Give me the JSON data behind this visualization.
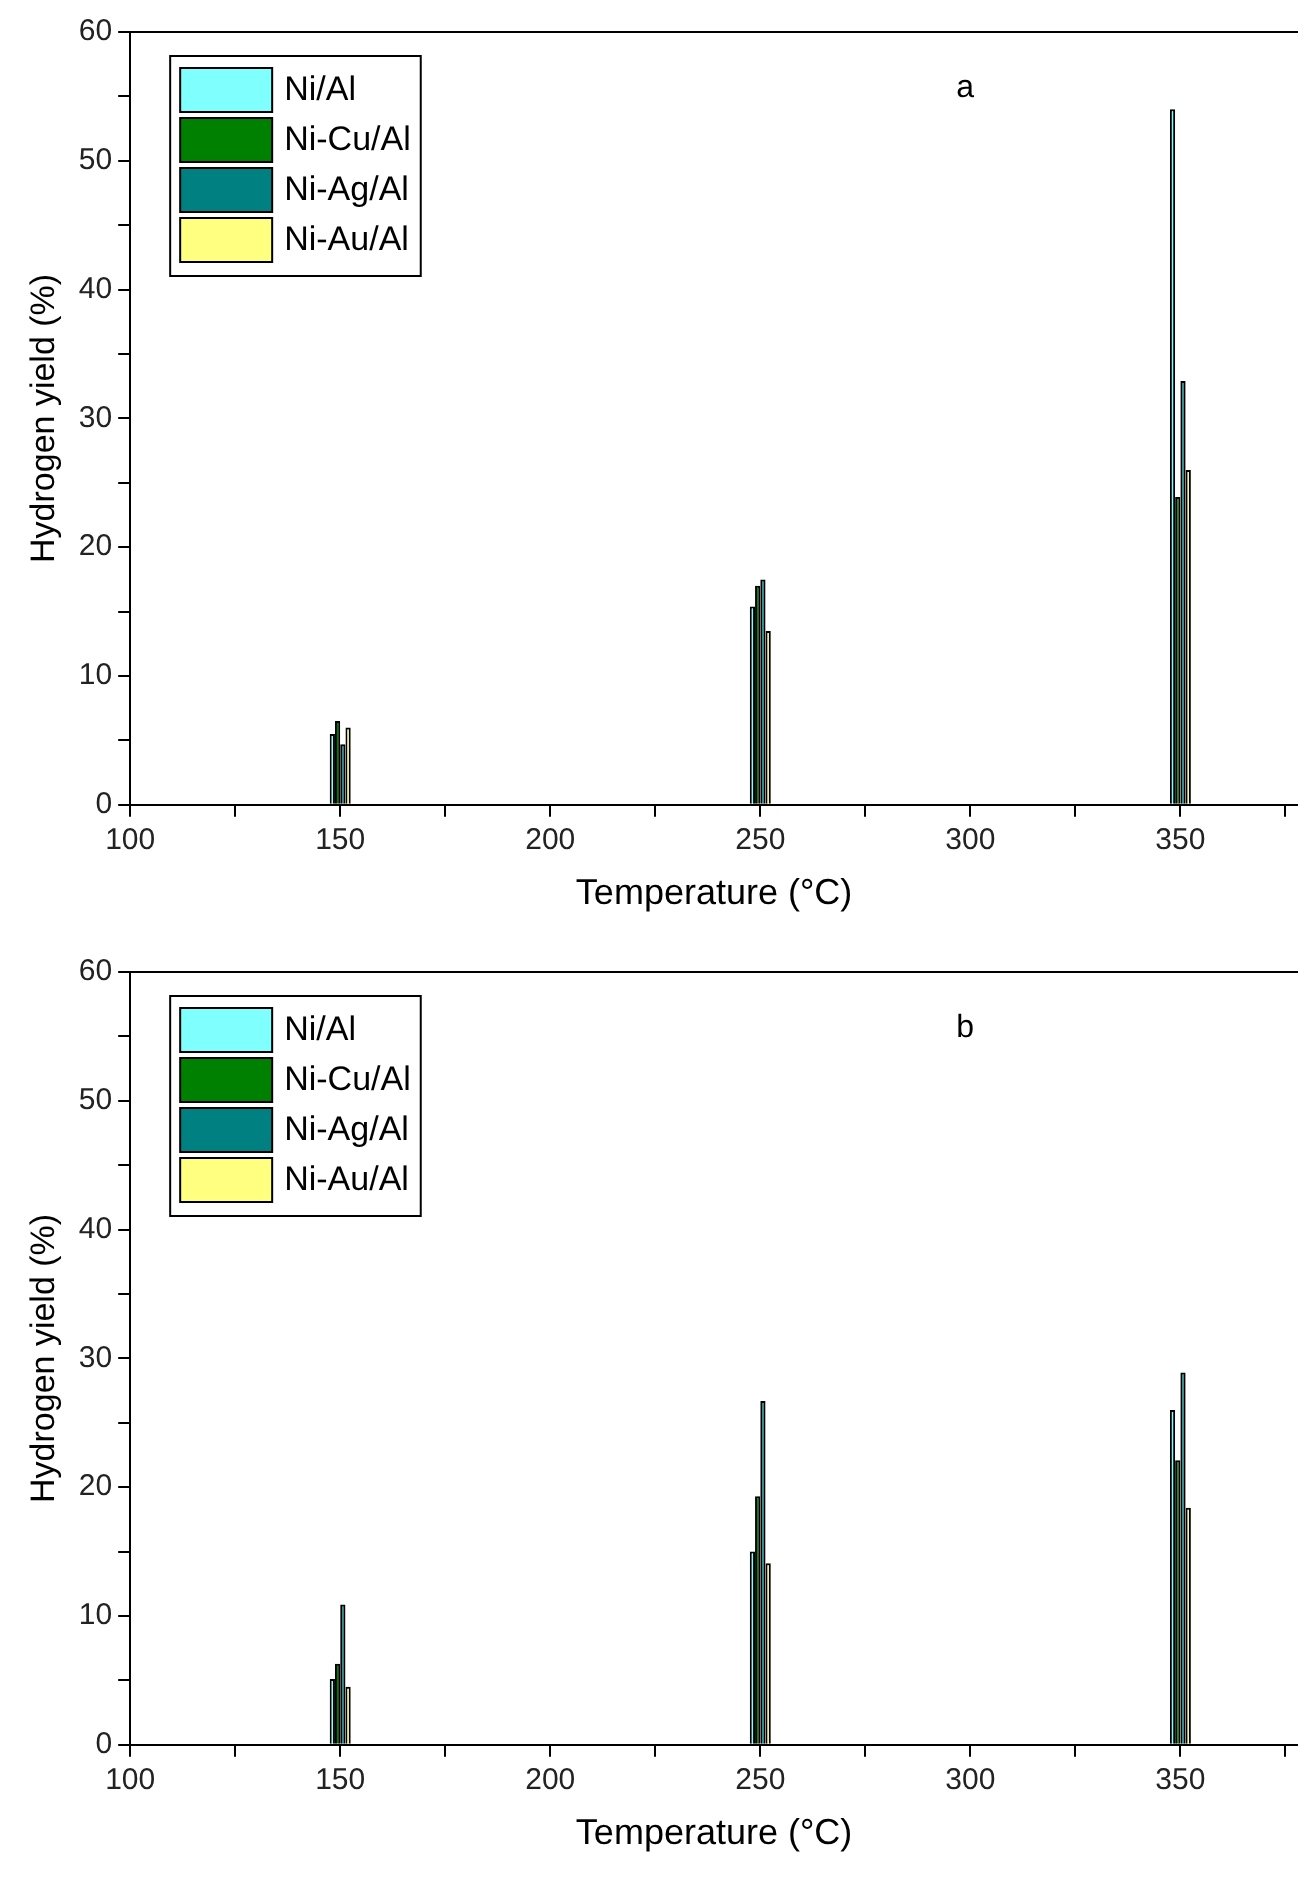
{
  "chart_data": [
    {
      "type": "bar",
      "xlabel": "Temperature (°C)",
      "ylabel": "Hydrogen yield (%)",
      "annotations": [
        "a"
      ],
      "legend": "top left",
      "x": [
        150,
        250,
        350
      ],
      "xlim": [
        100,
        378
      ],
      "xticks": [
        100,
        {
          "value": 125,
          "label": null
        },
        150,
        {
          "value": 175,
          "label": null
        },
        200,
        {
          "value": 225,
          "label": null
        },
        250,
        {
          "value": 275,
          "label": null
        },
        300,
        {
          "value": 325,
          "label": null
        },
        350,
        {
          "value": 375,
          "label": null
        }
      ],
      "ylim": [
        0,
        60
      ],
      "yticks": [
        0,
        {
          "value": 5,
          "label": null
        },
        10,
        {
          "value": 15,
          "label": null
        },
        20,
        {
          "value": 25,
          "label": null
        },
        30,
        {
          "value": 35,
          "label": null
        },
        40,
        {
          "value": 45,
          "label": null
        },
        50,
        {
          "value": 55,
          "label": null
        },
        60
      ],
      "series": [
        {
          "name": "Ni/Al",
          "color": "#80ffff",
          "values": [
            5.5,
            15.4,
            54.0
          ]
        },
        {
          "name": "Ni-Cu/Al",
          "color": "#008000",
          "values": [
            6.5,
            17.0,
            23.9
          ]
        },
        {
          "name": "Ni-Ag/Al",
          "color": "#008080",
          "values": [
            4.7,
            17.5,
            32.9
          ]
        },
        {
          "name": "Ni-Au/Al",
          "color": "#ffff80",
          "values": [
            6.0,
            13.5,
            26.0
          ]
        }
      ]
    },
    {
      "type": "bar",
      "xlabel": "Temperature (°C)",
      "ylabel": "Hydrogen yield (%)",
      "annotations": [
        "b"
      ],
      "legend": "top left",
      "x": [
        150,
        250,
        350
      ],
      "xlim": [
        100,
        378
      ],
      "xticks": [
        100,
        {
          "value": 125,
          "label": null
        },
        150,
        {
          "value": 175,
          "label": null
        },
        200,
        {
          "value": 225,
          "label": null
        },
        250,
        {
          "value": 275,
          "label": null
        },
        300,
        {
          "value": 325,
          "label": null
        },
        350,
        {
          "value": 375,
          "label": null
        }
      ],
      "ylim": [
        0,
        60
      ],
      "yticks": [
        0,
        {
          "value": 5,
          "label": null
        },
        10,
        {
          "value": 15,
          "label": null
        },
        20,
        {
          "value": 25,
          "label": null
        },
        30,
        {
          "value": 35,
          "label": null
        },
        40,
        {
          "value": 45,
          "label": null
        },
        50,
        {
          "value": 55,
          "label": null
        },
        60
      ],
      "series": [
        {
          "name": "Ni/Al",
          "color": "#80ffff",
          "values": [
            5.1,
            15.0,
            26.0
          ]
        },
        {
          "name": "Ni-Cu/Al",
          "color": "#008000",
          "values": [
            6.3,
            19.3,
            22.1
          ]
        },
        {
          "name": "Ni-Ag/Al",
          "color": "#008080",
          "values": [
            10.9,
            26.7,
            28.9
          ]
        },
        {
          "name": "Ni-Au/Al",
          "color": "#ffff80",
          "values": [
            4.5,
            14.1,
            18.4
          ]
        }
      ]
    }
  ]
}
